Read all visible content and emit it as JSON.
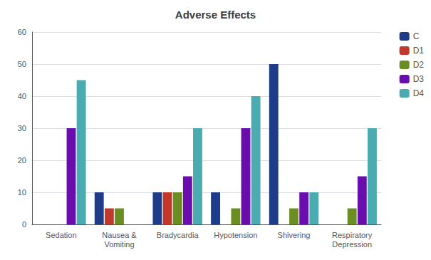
{
  "chart_data": {
    "type": "bar",
    "title": "Adverse Effects",
    "categories": [
      "Sedation",
      "Nausea &\nVomiting",
      "Bradycardia",
      "Hypotension",
      "Shivering",
      "Respiratory\nDepression"
    ],
    "series": [
      {
        "name": "C",
        "color": "#1F3C88",
        "values": [
          0,
          10,
          10,
          10,
          50,
          0
        ]
      },
      {
        "name": "D1",
        "color": "#C0392B",
        "values": [
          0,
          5,
          10,
          0,
          0,
          0
        ]
      },
      {
        "name": "D2",
        "color": "#6B8E23",
        "values": [
          0,
          5,
          10,
          5,
          5,
          5
        ]
      },
      {
        "name": "D3",
        "color": "#6A0DAD",
        "values": [
          30,
          0,
          15,
          30,
          10,
          15
        ]
      },
      {
        "name": "D4",
        "color": "#4AACB0",
        "values": [
          45,
          0,
          30,
          40,
          10,
          30
        ]
      }
    ],
    "ylim": [
      0,
      60
    ],
    "yticks": [
      0,
      10,
      20,
      30,
      40,
      50,
      60
    ],
    "grid": true,
    "legend": "upper right"
  }
}
